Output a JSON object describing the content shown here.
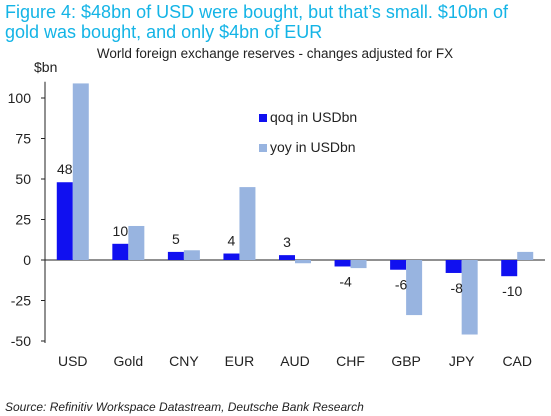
{
  "figure": {
    "title_line1": "Figure 4: $48bn of USD were bought, but that’s small. $10bn of",
    "title_line2": "gold was bought, and only $4bn of EUR"
  },
  "source": "Source: Refinitiv Workspace Datastream, Deutsche Bank Research",
  "colors": {
    "title": "#14b4e6",
    "qoq": "#1010f0",
    "yoy": "#98b4e0",
    "axis": "#222222"
  },
  "chart_data": {
    "type": "bar",
    "title": "World foreign exchange reserves - changes adjusted for FX",
    "ylabel": "$bn",
    "xlabel": "",
    "ylim": [
      -50,
      110
    ],
    "yticks": [
      -50,
      -25,
      0,
      25,
      50,
      75,
      100
    ],
    "grid": false,
    "legend": "right",
    "categories": [
      "USD",
      "Gold",
      "CNY",
      "EUR",
      "AUD",
      "CHF",
      "GBP",
      "JPY",
      "CAD"
    ],
    "series": [
      {
        "name": "qoq in USDbn",
        "values": [
          48,
          10,
          5,
          4,
          3,
          -4,
          -6,
          -8,
          -10
        ],
        "labels": [
          "48",
          "10",
          "5",
          "4",
          "3",
          "-4",
          "-6",
          "-8",
          "-10"
        ]
      },
      {
        "name": "yoy in USDbn",
        "values": [
          109,
          21,
          6,
          45,
          -2,
          -5,
          -34,
          -46,
          5
        ]
      }
    ]
  }
}
